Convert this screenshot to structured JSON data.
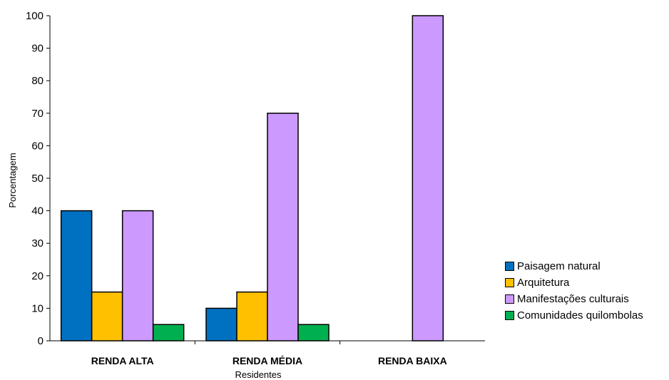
{
  "chart_data": {
    "type": "bar",
    "categories": [
      "RENDA ALTA",
      "RENDA MÉDIA",
      "RENDA BAIXA"
    ],
    "series": [
      {
        "name": "Paisagem natural",
        "values": [
          40,
          10,
          0
        ],
        "color": "#0070C0"
      },
      {
        "name": "Arquitetura",
        "values": [
          15,
          15,
          0
        ],
        "color": "#FFC000"
      },
      {
        "name": "Manifestações culturais",
        "values": [
          40,
          70,
          100
        ],
        "color": "#CC99FF"
      },
      {
        "name": "Comunidades quilombolas",
        "values": [
          5,
          5,
          0
        ],
        "color": "#00B050"
      }
    ],
    "xlabel": "Residentes",
    "ylabel": "Porcentagem",
    "ylim": [
      0,
      100
    ],
    "yticks": [
      0,
      10,
      20,
      30,
      40,
      50,
      60,
      70,
      80,
      90,
      100
    ],
    "grid": false,
    "legend_position": "right"
  }
}
